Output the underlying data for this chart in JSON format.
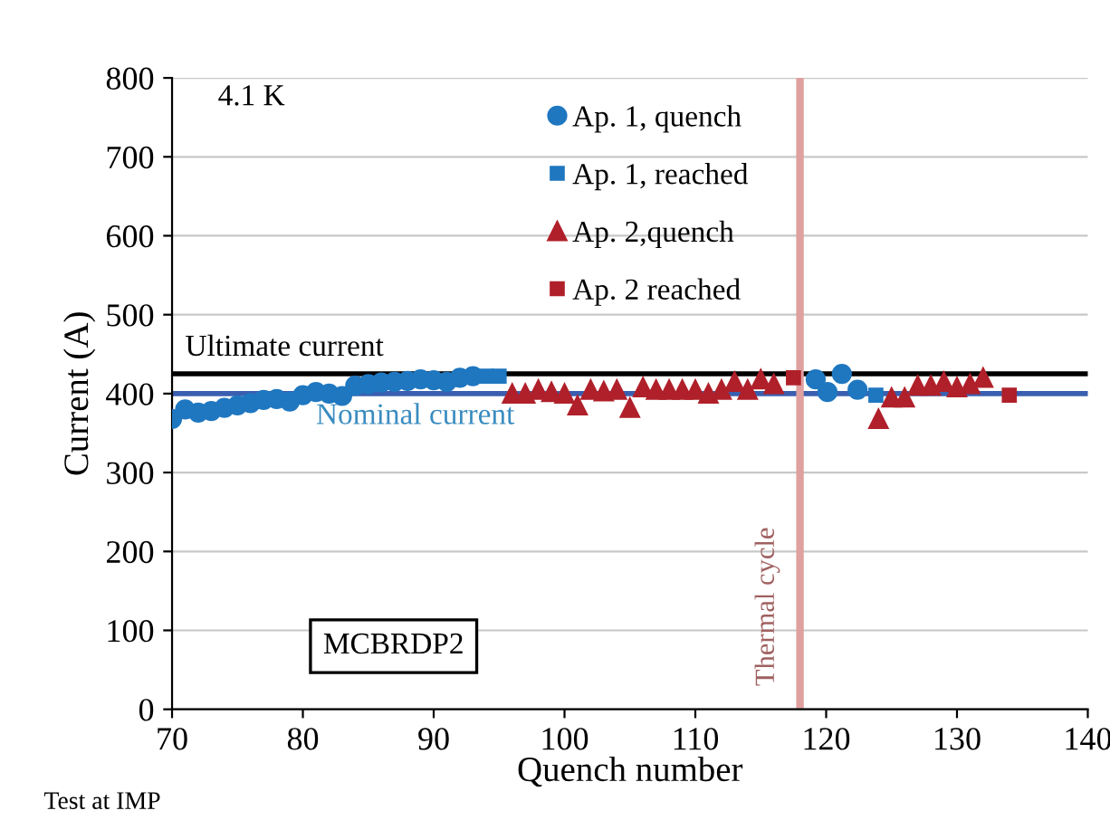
{
  "chart_data": {
    "type": "scatter",
    "xlabel": "Quench number",
    "ylabel": "Current (A)",
    "xlim": [
      70,
      140
    ],
    "ylim": [
      0,
      800
    ],
    "xticks": [
      70,
      80,
      90,
      100,
      110,
      120,
      130,
      140
    ],
    "yticks": [
      0,
      100,
      200,
      300,
      400,
      500,
      600,
      700,
      800
    ],
    "grid": "y",
    "legend": "top",
    "series": [
      {
        "name": "Ap. 1, quench",
        "color": "#1f77c0",
        "marker": "circle",
        "x": [
          70,
          71,
          72,
          73,
          74,
          75,
          76,
          77,
          78,
          79,
          80,
          81,
          82,
          83,
          84,
          85,
          86,
          87,
          88,
          89,
          90,
          91,
          92,
          93,
          119.2,
          120.1,
          121.2,
          122.4
        ],
        "values": [
          368,
          380,
          376,
          378,
          382,
          385,
          388,
          392,
          393,
          390,
          398,
          402,
          400,
          397,
          410,
          412,
          414,
          415,
          416,
          418,
          417,
          415,
          420,
          422,
          418,
          402,
          425,
          405
        ]
      },
      {
        "name": "Ap. 1, reached",
        "color": "#1f77c0",
        "marker": "square",
        "x": [
          94,
          95,
          123.8
        ],
        "values": [
          422,
          422,
          398
        ]
      },
      {
        "name": "Ap. 2,quench",
        "color": "#b0202a",
        "marker": "triangle",
        "x": [
          96,
          97,
          98,
          99,
          100,
          101,
          102,
          103,
          104,
          105,
          106,
          107,
          108,
          109,
          110,
          111,
          112,
          113,
          114,
          115,
          116,
          124,
          125,
          126,
          127,
          128,
          129,
          130,
          131,
          132
        ],
        "values": [
          400,
          400,
          405,
          402,
          400,
          385,
          405,
          403,
          405,
          382,
          408,
          405,
          405,
          405,
          405,
          400,
          405,
          415,
          405,
          418,
          412,
          368,
          395,
          395,
          410,
          410,
          415,
          408,
          412,
          420
        ]
      },
      {
        "name": "Ap. 2 reached",
        "color": "#b0202a",
        "marker": "square",
        "x": [
          117.5,
          134
        ],
        "values": [
          420,
          398
        ]
      }
    ],
    "ref_lines": [
      {
        "axis": "y",
        "value": 425,
        "label": "Ultimate current",
        "color": "#000000"
      },
      {
        "axis": "y",
        "value": 400,
        "label": "Nominal current",
        "color": "#3a5fb0"
      },
      {
        "axis": "x",
        "value": 118,
        "label": "Thermal cycle",
        "color": "#e0a0a0"
      }
    ],
    "annotations": [
      {
        "text": "4.1 K"
      },
      {
        "text": "MCBRDP2"
      },
      {
        "text": "Test at IMP"
      }
    ]
  }
}
